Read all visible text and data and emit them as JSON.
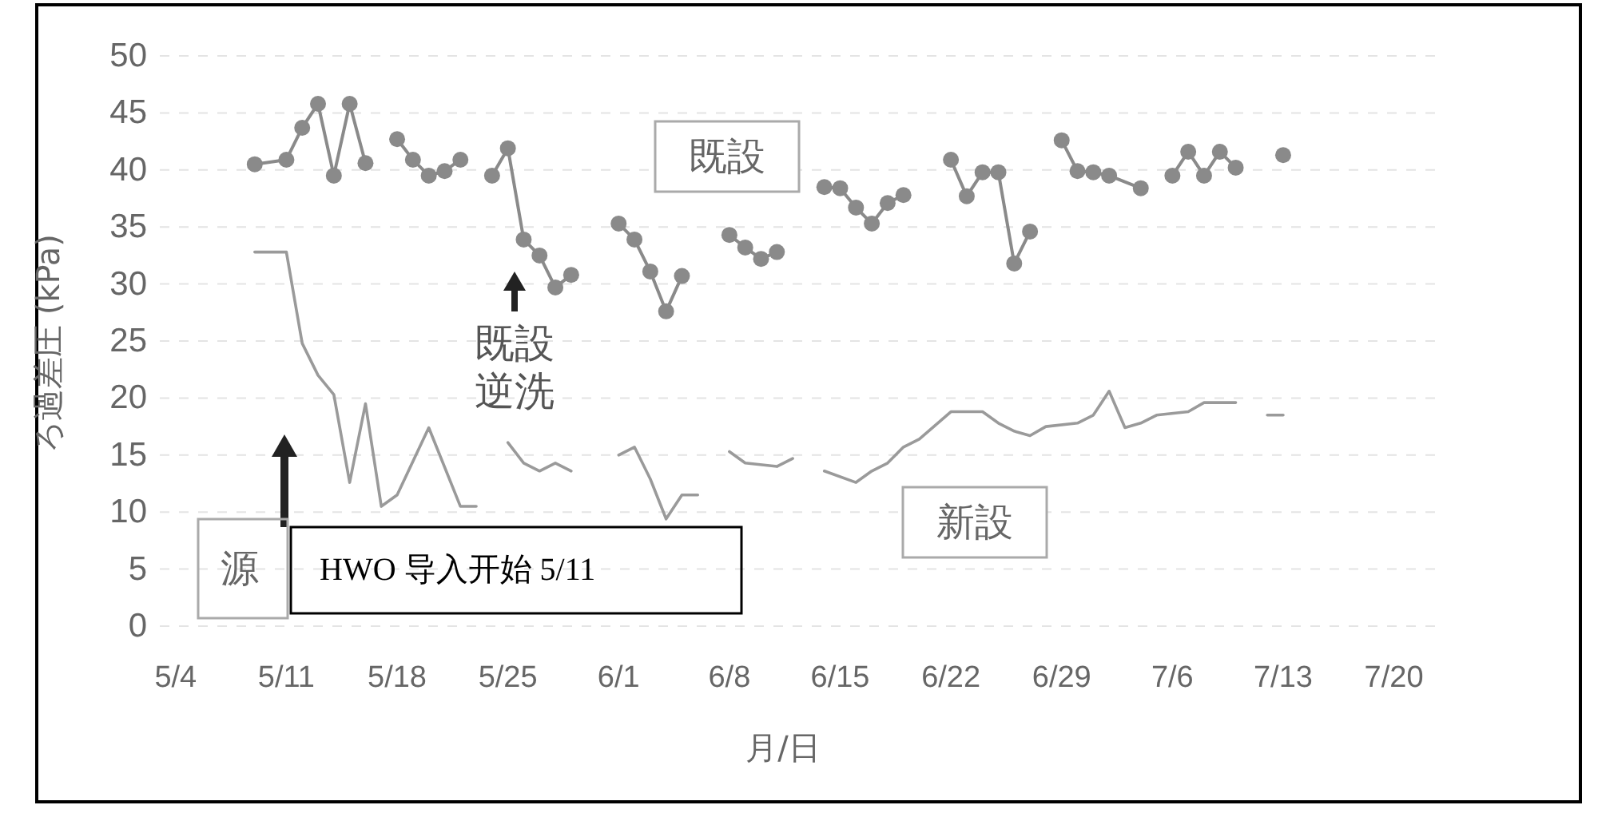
{
  "chart_data": {
    "type": "line",
    "xlabel": "月/日",
    "ylabel": "ろ過差圧 (kPa)",
    "xlim": [
      "--05-03",
      "--07-23"
    ],
    "xticks": [
      {
        "value": "--05-04",
        "label": "5/4"
      },
      {
        "value": "--05-11",
        "label": "5/11"
      },
      {
        "value": "--05-18",
        "label": "5/18"
      },
      {
        "value": "--05-25",
        "label": "5/25"
      },
      {
        "value": "--06-01",
        "label": "6/1"
      },
      {
        "value": "--06-08",
        "label": "6/8"
      },
      {
        "value": "--06-15",
        "label": "6/15"
      },
      {
        "value": "--06-22",
        "label": "6/22"
      },
      {
        "value": "--06-29",
        "label": "6/29"
      },
      {
        "value": "--07-06",
        "label": "7/6"
      },
      {
        "value": "--07-13",
        "label": "7/13"
      },
      {
        "value": "--07-20",
        "label": "7/20"
      }
    ],
    "ylim": [
      0,
      50
    ],
    "yticks": [
      0,
      5,
      10,
      15,
      20,
      25,
      30,
      35,
      40,
      45,
      50
    ],
    "grid": "y",
    "series": [
      {
        "name": "既設",
        "color": "#8a8a8a",
        "marker": "circle",
        "x": [
          "--05-09",
          "--05-11",
          "--05-12",
          "--05-13",
          "--05-14",
          "--05-15",
          "--05-16",
          null,
          "--05-18",
          "--05-19",
          "--05-20",
          "--05-21",
          "--05-22",
          null,
          "--05-24",
          "--05-25",
          "--05-26",
          "--05-27",
          "--05-28",
          "--05-29",
          null,
          "--06-01",
          "--06-02",
          "--06-03",
          "--06-04",
          "--06-05",
          null,
          "--06-08",
          "--06-09",
          "--06-10",
          "--06-11",
          null,
          "--06-14",
          "--06-15",
          "--06-16",
          "--06-17",
          "--06-18",
          "--06-19",
          null,
          "--06-22",
          "--06-23",
          "--06-24",
          "--06-25",
          "--06-26",
          "--06-27",
          null,
          "--06-29",
          "--06-30",
          "--07-01",
          "--07-02",
          "--07-04",
          null,
          "--07-06",
          "--07-07",
          "--07-08",
          "--07-09",
          "--07-10",
          null,
          "--07-13"
        ],
        "values": [
          40.5,
          40.9,
          43.7,
          45.8,
          39.5,
          45.8,
          40.6,
          null,
          42.7,
          40.9,
          39.5,
          39.9,
          40.9,
          null,
          39.5,
          41.9,
          33.9,
          32.5,
          29.7,
          30.8,
          null,
          35.3,
          33.9,
          31.1,
          27.6,
          30.7,
          null,
          34.3,
          33.2,
          32.2,
          32.8,
          null,
          38.5,
          38.4,
          36.7,
          35.3,
          37.1,
          37.8,
          null,
          40.9,
          37.7,
          39.8,
          39.8,
          31.8,
          34.6,
          null,
          42.6,
          39.9,
          39.8,
          39.5,
          38.4,
          null,
          39.5,
          41.6,
          39.5,
          41.6,
          40.2,
          null,
          41.3
        ]
      },
      {
        "name": "新設",
        "color": "#9a9a9a",
        "marker": "none",
        "x": [
          "--05-09",
          "--05-11",
          "--05-12",
          "--05-13",
          "--05-14",
          "--05-15",
          "--05-16",
          "--05-17",
          "--05-18",
          "--05-20",
          "--05-22",
          "--05-23",
          null,
          "--05-25",
          "--05-26",
          "--05-27",
          "--05-28",
          "--05-29",
          null,
          "--06-01",
          "--06-02",
          "--06-03",
          "--06-04",
          "--06-05",
          "--06-06",
          null,
          "--06-08",
          "--06-09",
          "--06-11",
          "--06-12",
          null,
          "--06-14",
          "--06-16",
          "--06-17",
          "--06-18",
          "--06-19",
          "--06-20",
          "--06-22",
          "--06-24",
          "--06-25",
          "--06-26",
          "--06-27",
          "--06-28",
          "--06-30",
          "--07-01",
          "--07-02",
          "--07-03",
          "--07-04",
          "--07-05",
          "--07-07",
          "--07-08",
          "--07-10",
          null,
          "--07-12",
          "--07-13"
        ],
        "values": [
          32.8,
          32.8,
          24.8,
          22.0,
          20.3,
          12.6,
          19.5,
          10.5,
          11.5,
          17.4,
          10.5,
          10.5,
          null,
          16.1,
          14.3,
          13.6,
          14.3,
          13.6,
          null,
          15.0,
          15.7,
          12.9,
          9.4,
          11.5,
          11.5,
          null,
          15.3,
          14.3,
          14.0,
          14.7,
          null,
          13.6,
          12.6,
          13.6,
          14.3,
          15.7,
          16.4,
          18.8,
          18.8,
          17.8,
          17.1,
          16.7,
          17.5,
          17.8,
          18.5,
          20.6,
          17.4,
          17.8,
          18.5,
          18.8,
          19.6,
          19.6,
          null,
          18.5,
          18.5
        ]
      }
    ],
    "annotations": [
      "既設逆洗",
      "HWO 导入开始 5/11",
      "源"
    ]
  }
}
